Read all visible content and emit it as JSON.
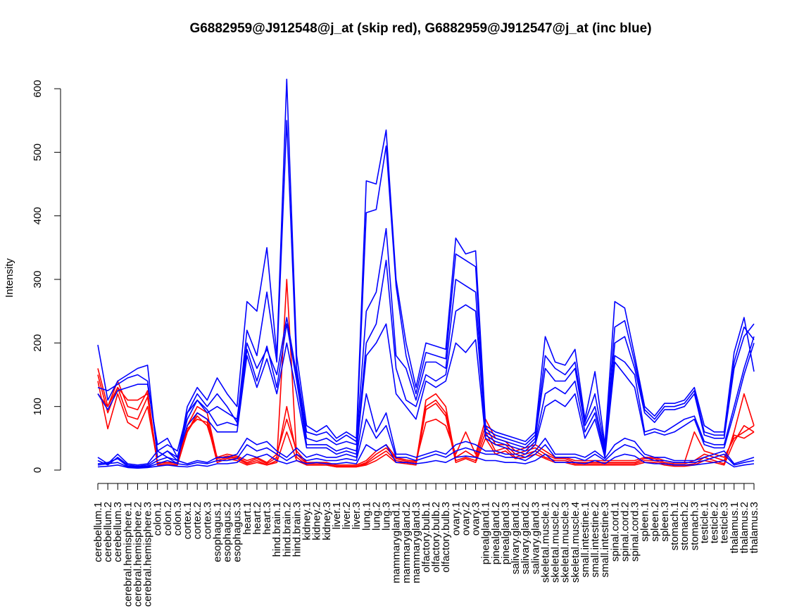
{
  "chart_data": {
    "type": "line",
    "title": "G6882959@J912548@j_at (skip red), G6882959@J912547@j_at (inc blue)",
    "xlabel": "",
    "ylabel": "Intensity",
    "ylim": [
      0,
      620
    ],
    "yticks": [
      0,
      100,
      200,
      300,
      400,
      500,
      600
    ],
    "grid": false,
    "legend": "none",
    "categories": [
      "cerebellum.1",
      "cerebellum.2",
      "cerebellum.3",
      "cerebral.hemisphere.1",
      "cerebral.hemisphere.2",
      "cerebral.hemisphere.3",
      "colon.1",
      "colon.2",
      "colon.3",
      "cortex.1",
      "cortex.2",
      "cortex.3",
      "esophagus.1",
      "esophagus.2",
      "esophagus.3",
      "heart.1",
      "heart.2",
      "heart.3",
      "hind.brain.1",
      "hind.brain.2",
      "hind.brain.3",
      "kidney.1",
      "kidney.2",
      "kidney.3",
      "liver.1",
      "liver.2",
      "liver.3",
      "lung.1",
      "lung.2",
      "lung.3",
      "mammarygland.1",
      "mammarygland.2",
      "mammarygland.3",
      "olfactory.bulb.1",
      "olfactory.bulb.2",
      "olfactory.bulb.3",
      "ovary.1",
      "ovary.2",
      "ovary.3",
      "pinealgland.1",
      "pinealgland.2",
      "pinealgland.3",
      "salivary.gland.1",
      "salivary.gland.2",
      "salivary.gland.3",
      "skeletal.muscle.1",
      "skeletal.muscle.2",
      "skeletal.muscle.3",
      "skeletal.muscle.4",
      "small.intestine.1",
      "small.intestine.2",
      "small.intestine.3",
      "spinal.cord.1",
      "spinal.cord.2",
      "spinal.cord.3",
      "spleen.1",
      "spleen.2",
      "spleen.3",
      "stomach.1",
      "stomach.2",
      "stomach.3",
      "testicle.1",
      "testicle.2",
      "testicle.3",
      "thalamus.1",
      "thalamus.2",
      "thalamus.3"
    ],
    "colors": {
      "skip": "#ff0000",
      "inc": "#0000ff"
    },
    "series": [
      {
        "group": "skip",
        "values": [
          160,
          100,
          140,
          100,
          95,
          125,
          8,
          8,
          8,
          60,
          90,
          80,
          15,
          20,
          18,
          10,
          15,
          8,
          15,
          300,
          20,
          8,
          8,
          8,
          5,
          5,
          5,
          10,
          20,
          30,
          15,
          12,
          10,
          110,
          120,
          100,
          15,
          20,
          15,
          60,
          30,
          35,
          20,
          25,
          30,
          20,
          15,
          15,
          10,
          10,
          10,
          10,
          10,
          10,
          10,
          15,
          15,
          10,
          8,
          8,
          10,
          20,
          15,
          10,
          60,
          120,
          70
        ]
      },
      {
        "group": "skip",
        "values": [
          150,
          90,
          130,
          85,
          80,
          115,
          10,
          10,
          10,
          70,
          100,
          90,
          18,
          22,
          20,
          12,
          18,
          10,
          20,
          100,
          25,
          10,
          10,
          10,
          6,
          6,
          6,
          12,
          25,
          35,
          18,
          14,
          12,
          100,
          110,
          90,
          20,
          30,
          20,
          70,
          40,
          40,
          25,
          30,
          35,
          25,
          18,
          18,
          12,
          12,
          12,
          12,
          12,
          12,
          12,
          18,
          18,
          12,
          10,
          10,
          15,
          25,
          20,
          15,
          55,
          50,
          60
        ]
      },
      {
        "group": "skip",
        "values": [
          140,
          65,
          120,
          75,
          65,
          100,
          12,
          12,
          12,
          60,
          85,
          70,
          20,
          25,
          22,
          15,
          20,
          12,
          25,
          80,
          30,
          12,
          12,
          12,
          8,
          8,
          8,
          15,
          30,
          40,
          20,
          16,
          14,
          75,
          80,
          70,
          25,
          60,
          25,
          80,
          50,
          45,
          30,
          35,
          40,
          30,
          20,
          20,
          15,
          15,
          15,
          15,
          15,
          15,
          15,
          20,
          20,
          15,
          12,
          12,
          60,
          30,
          25,
          20,
          50,
          60,
          70
        ]
      },
      {
        "group": "skip",
        "values": [
          120,
          100,
          130,
          110,
          110,
          120,
          8,
          8,
          8,
          65,
          80,
          75,
          12,
          18,
          15,
          8,
          12,
          8,
          12,
          60,
          15,
          8,
          8,
          8,
          5,
          5,
          5,
          8,
          15,
          25,
          12,
          10,
          8,
          95,
          105,
          85,
          12,
          18,
          12,
          50,
          25,
          30,
          18,
          20,
          25,
          18,
          12,
          12,
          8,
          8,
          8,
          8,
          8,
          8,
          8,
          12,
          12,
          8,
          6,
          6,
          8,
          15,
          12,
          8,
          45,
          70,
          60
        ]
      },
      {
        "group": "inc",
        "values": [
          197,
          110,
          140,
          150,
          160,
          165,
          20,
          30,
          15,
          100,
          130,
          110,
          145,
          120,
          100,
          265,
          250,
          350,
          180,
          615,
          180,
          70,
          60,
          70,
          50,
          60,
          50,
          455,
          450,
          535,
          300,
          200,
          130,
          200,
          195,
          190,
          365,
          340,
          345,
          70,
          60,
          55,
          50,
          45,
          60,
          210,
          170,
          165,
          190,
          80,
          155,
          40,
          265,
          255,
          180,
          100,
          85,
          105,
          105,
          110,
          130,
          70,
          60,
          60,
          185,
          240,
          155
        ]
      },
      {
        "group": "inc",
        "values": [
          130,
          125,
          135,
          145,
          150,
          140,
          30,
          20,
          10,
          90,
          120,
          100,
          120,
          100,
          75,
          220,
          180,
          280,
          170,
          550,
          160,
          60,
          55,
          60,
          45,
          55,
          45,
          405,
          410,
          510,
          290,
          180,
          120,
          185,
          180,
          175,
          340,
          330,
          320,
          65,
          55,
          50,
          45,
          40,
          55,
          180,
          160,
          150,
          170,
          75,
          120,
          35,
          225,
          235,
          170,
          95,
          80,
          100,
          100,
          105,
          125,
          60,
          55,
          55,
          170,
          225,
          205
        ]
      },
      {
        "group": "inc",
        "values": [
          120,
          95,
          125,
          130,
          135,
          135,
          40,
          50,
          20,
          80,
          110,
          90,
          100,
          90,
          80,
          200,
          160,
          190,
          150,
          240,
          150,
          50,
          45,
          50,
          40,
          45,
          40,
          250,
          280,
          380,
          180,
          160,
          110,
          170,
          170,
          160,
          300,
          290,
          280,
          60,
          50,
          45,
          40,
          35,
          50,
          160,
          140,
          140,
          160,
          70,
          100,
          30,
          200,
          210,
          160,
          90,
          75,
          95,
          95,
          100,
          120,
          55,
          50,
          50,
          160,
          210,
          230
        ]
      },
      {
        "group": "inc",
        "values": [
          20,
          10,
          25,
          10,
          8,
          10,
          30,
          40,
          30,
          90,
          110,
          95,
          70,
          75,
          70,
          190,
          140,
          195,
          130,
          230,
          140,
          40,
          40,
          40,
          30,
          35,
          30,
          200,
          230,
          330,
          160,
          110,
          100,
          150,
          140,
          150,
          250,
          260,
          250,
          55,
          45,
          40,
          35,
          30,
          45,
          120,
          130,
          120,
          140,
          60,
          90,
          25,
          180,
          170,
          150,
          60,
          65,
          60,
          70,
          80,
          85,
          45,
          40,
          40,
          100,
          160,
          210
        ]
      },
      {
        "group": "inc",
        "values": [
          15,
          8,
          20,
          8,
          6,
          8,
          20,
          30,
          20,
          70,
          90,
          80,
          60,
          60,
          60,
          180,
          130,
          175,
          120,
          200,
          120,
          35,
          35,
          35,
          25,
          30,
          25,
          180,
          200,
          230,
          120,
          100,
          80,
          140,
          130,
          140,
          200,
          185,
          205,
          50,
          40,
          35,
          30,
          25,
          40,
          100,
          110,
          100,
          120,
          50,
          80,
          20,
          170,
          150,
          130,
          55,
          60,
          55,
          60,
          70,
          80,
          40,
          35,
          35,
          90,
          150,
          200
        ]
      },
      {
        "group": "inc",
        "values": [
          10,
          12,
          18,
          6,
          5,
          6,
          15,
          20,
          15,
          10,
          15,
          12,
          20,
          20,
          25,
          50,
          40,
          45,
          30,
          20,
          35,
          20,
          25,
          20,
          20,
          25,
          20,
          120,
          60,
          90,
          25,
          25,
          20,
          25,
          30,
          25,
          40,
          45,
          40,
          30,
          30,
          25,
          25,
          20,
          30,
          50,
          25,
          25,
          25,
          20,
          30,
          18,
          40,
          50,
          45,
          25,
          20,
          20,
          15,
          15,
          15,
          20,
          25,
          30,
          10,
          15,
          20
        ]
      },
      {
        "group": "inc",
        "values": [
          8,
          10,
          12,
          5,
          4,
          5,
          10,
          15,
          10,
          8,
          12,
          10,
          15,
          15,
          18,
          40,
          30,
          35,
          25,
          15,
          25,
          15,
          18,
          15,
          15,
          18,
          15,
          80,
          50,
          70,
          20,
          20,
          15,
          20,
          25,
          20,
          30,
          35,
          30,
          25,
          25,
          20,
          20,
          15,
          25,
          40,
          20,
          20,
          20,
          15,
          25,
          15,
          30,
          40,
          35,
          20,
          15,
          15,
          12,
          12,
          12,
          15,
          20,
          25,
          8,
          12,
          15
        ]
      },
      {
        "group": "inc",
        "values": [
          5,
          6,
          8,
          4,
          3,
          4,
          6,
          8,
          6,
          5,
          8,
          6,
          10,
          10,
          12,
          25,
          20,
          25,
          15,
          10,
          15,
          10,
          12,
          10,
          10,
          12,
          10,
          40,
          30,
          40,
          12,
          12,
          10,
          12,
          15,
          12,
          20,
          22,
          20,
          15,
          15,
          12,
          12,
          10,
          15,
          25,
          12,
          12,
          12,
          10,
          15,
          10,
          20,
          25,
          22,
          12,
          10,
          10,
          8,
          8,
          8,
          10,
          12,
          15,
          5,
          8,
          10
        ]
      }
    ]
  }
}
